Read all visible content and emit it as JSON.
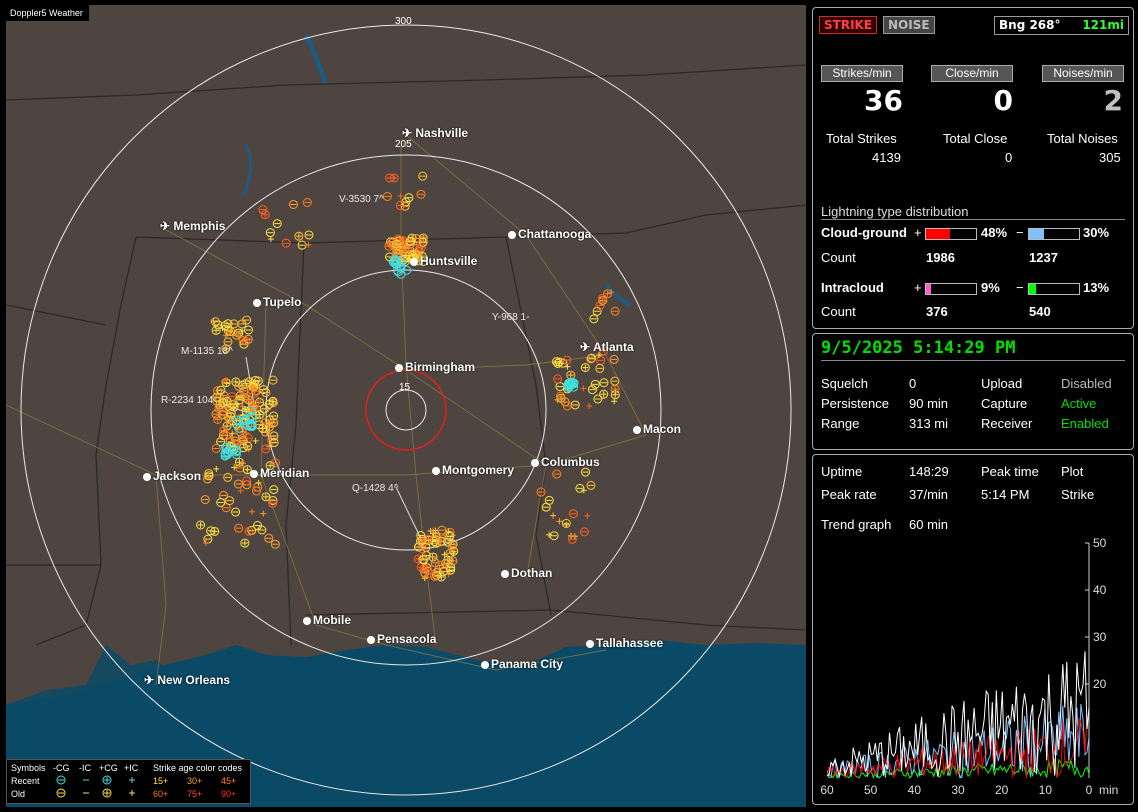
{
  "app_label": "Doppler5 Weather",
  "map": {
    "ring_labels": [
      "300",
      "205",
      "15"
    ],
    "cities": [
      {
        "name": "Nashville",
        "airport": true
      },
      {
        "name": "Memphis",
        "airport": true
      },
      {
        "name": "Chattanooga",
        "airport": false
      },
      {
        "name": "Huntsville",
        "airport": false
      },
      {
        "name": "Tupelo",
        "airport": false
      },
      {
        "name": "Atlanta",
        "airport": true
      },
      {
        "name": "Birmingham",
        "airport": false
      },
      {
        "name": "Macon",
        "airport": false
      },
      {
        "name": "Jackson",
        "airport": false
      },
      {
        "name": "Meridian",
        "airport": false
      },
      {
        "name": "Montgomery",
        "airport": false
      },
      {
        "name": "Columbus",
        "airport": false
      },
      {
        "name": "Dothan",
        "airport": false
      },
      {
        "name": "Mobile",
        "airport": false
      },
      {
        "name": "Pensacola",
        "airport": false
      },
      {
        "name": "Tallahassee",
        "airport": false
      },
      {
        "name": "Panama City",
        "airport": false
      },
      {
        "name": "New Orleans",
        "airport": true
      }
    ],
    "storm_labels": [
      "V-3530 7^",
      "Y-968 1-",
      "M-1135 18^",
      "R-2234 104",
      "Q-1428 4^"
    ]
  },
  "legend": {
    "symbols_label": "Symbols",
    "columns": [
      "-CG",
      "-IC",
      "+CG",
      "+IC"
    ],
    "recent_label": "Recent",
    "old_label": "Old",
    "age_title": "Strike age color codes",
    "recent_ages": [
      "15+",
      "30+",
      "45+"
    ],
    "old_ages": [
      "60+",
      "75+",
      "90+"
    ]
  },
  "status": {
    "strike_btn": "STRIKE",
    "noise_btn": "NOISE",
    "bearing_label": "Bng 268°",
    "distance": "121mi",
    "rates": [
      {
        "label": "Strikes/min",
        "value": "36",
        "total_label": "Total Strikes",
        "total": "4139"
      },
      {
        "label": "Close/min",
        "value": "0",
        "total_label": "Total Close",
        "total": "0"
      },
      {
        "label": "Noises/min",
        "value": "2",
        "total_label": "Total Noises",
        "total": "305"
      }
    ],
    "dist_title": "Lightning type distribution",
    "cg_label": "Cloud-ground",
    "ic_label": "Intracloud",
    "count_label": "Count",
    "plus": "+",
    "minus": "−",
    "cg_pos_pct": "48%",
    "cg_pos_frac": 0.48,
    "cg_pos_count": "1986",
    "cg_neg_pct": "30%",
    "cg_neg_frac": 0.3,
    "cg_neg_count": "1237",
    "ic_pos_pct": "9%",
    "ic_pos_frac": 0.09,
    "ic_pos_count": "376",
    "ic_neg_pct": "13%",
    "ic_neg_frac": 0.13,
    "ic_neg_count": "540"
  },
  "info": {
    "datetime": "9/5/2025 5:14:29 PM",
    "rows": [
      [
        "Squelch",
        "0",
        "Upload",
        "Disabled"
      ],
      [
        "Persistence",
        "90 min",
        "Capture",
        "Active"
      ],
      [
        "Range",
        "313 mi",
        "Receiver",
        "Enabled"
      ]
    ]
  },
  "trend": {
    "uptime_label": "Uptime",
    "uptime": "148:29",
    "peak_time_label": "Peak time",
    "peak_time": "5:14 PM",
    "plot_label": "Plot",
    "plot_value": "Strike",
    "peak_rate_label": "Peak rate",
    "peak_rate": "37/min",
    "graph_label": "Trend graph",
    "graph_value": "60 min",
    "y_ticks": [
      "50",
      "40",
      "30",
      "20"
    ],
    "x_ticks": [
      "60",
      "50",
      "40",
      "30",
      "20",
      "10",
      "0"
    ],
    "x_unit": "min"
  },
  "colors": {
    "active_green": "#00e000",
    "cg_pos": "#ff0000",
    "cg_neg": "#80c0ff",
    "ic_pos": "#ff60c0",
    "ic_neg": "#00ff00",
    "water": "#0a4a66",
    "land": "#4f4540"
  }
}
